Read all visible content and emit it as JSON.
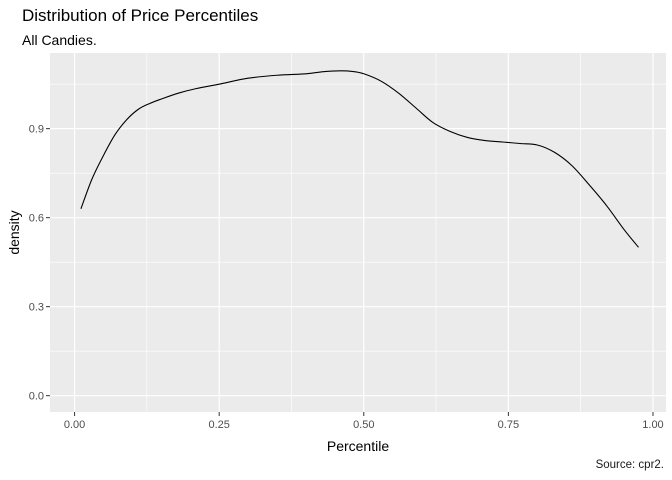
{
  "chart_data": {
    "type": "area",
    "title": "Distribution of Price Percentiles",
    "subtitle": "All Candies.",
    "caption": "Source: cpr2.",
    "xlabel": "Percentile",
    "ylabel": "density",
    "xlim": [
      -0.0425,
      1.0225
    ],
    "ylim": [
      -0.055,
      1.155
    ],
    "x_ticks": [
      0.0,
      0.25,
      0.5,
      0.75,
      1.0
    ],
    "x_tick_labels": [
      "0.00",
      "0.25",
      "0.50",
      "0.75",
      "1.00"
    ],
    "y_ticks": [
      0.0,
      0.3,
      0.6,
      0.9
    ],
    "y_tick_labels": [
      "0.0",
      "0.3",
      "0.6",
      "0.9"
    ],
    "grid": true,
    "background": "#ebebeb",
    "grid_color": "#ffffff",
    "line_color": "#000000",
    "series": [
      {
        "x": [
          0.011,
          0.03,
          0.05,
          0.07,
          0.09,
          0.11,
          0.13,
          0.15,
          0.18,
          0.21,
          0.25,
          0.3,
          0.35,
          0.4,
          0.43,
          0.46,
          0.48,
          0.5,
          0.53,
          0.56,
          0.59,
          0.62,
          0.65,
          0.68,
          0.71,
          0.74,
          0.77,
          0.8,
          0.83,
          0.86,
          0.89,
          0.92,
          0.95,
          0.975
        ],
        "y": [
          0.63,
          0.73,
          0.81,
          0.88,
          0.93,
          0.965,
          0.985,
          1.0,
          1.02,
          1.035,
          1.05,
          1.07,
          1.08,
          1.085,
          1.092,
          1.095,
          1.093,
          1.085,
          1.06,
          1.02,
          0.97,
          0.92,
          0.89,
          0.87,
          0.86,
          0.855,
          0.85,
          0.845,
          0.82,
          0.775,
          0.71,
          0.64,
          0.56,
          0.5
        ]
      }
    ]
  }
}
